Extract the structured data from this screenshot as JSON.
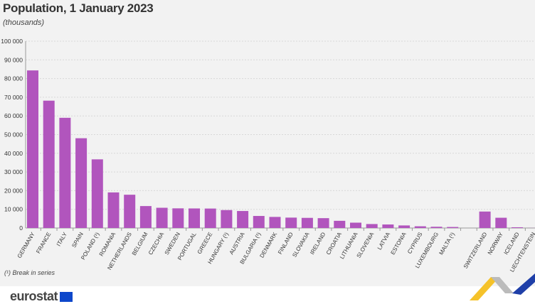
{
  "chart_data": {
    "type": "bar",
    "title": "Population, 1 January 2023",
    "subtitle": "(thousands)",
    "categories": [
      "GERMANY",
      "FRANCE",
      "ITALY",
      "SPAIN",
      "POLAND (¹)",
      "ROMANIA",
      "NETHERLANDS",
      "BELGIUM",
      "CZECHIA",
      "SWEDEN",
      "PORTUGAL",
      "GREECE",
      "HUNGARY (¹)",
      "AUSTRIA",
      "BULGARIA (¹)",
      "DENMARK",
      "FINLAND",
      "SLOVAKIA",
      "IRELAND",
      "CROATIA",
      "LITHUANIA",
      "SLOVENIA",
      "LATVIA",
      "ESTONIA",
      "CYPRUS",
      "LUXEMBOURG",
      "MALTA (¹)",
      "",
      "SWITZERLAND",
      "NORWAY",
      "ICELAND",
      "LIECHTENSTEIN"
    ],
    "values": [
      84359,
      68173,
      58997,
      48059,
      36754,
      19052,
      17811,
      11743,
      10828,
      10522,
      10467,
      10414,
      9600,
      9105,
      6448,
      5933,
      5564,
      5429,
      5271,
      3851,
      2858,
      2117,
      1883,
      1366,
      921,
      661,
      542,
      null,
      8812,
      5489,
      388,
      40
    ],
    "ylim": [
      0,
      100000
    ],
    "yticks": [
      "0",
      "10 000",
      "20 000",
      "30 000",
      "40 000",
      "50 000",
      "60 000",
      "70 000",
      "80 000",
      "90 000",
      "100 000"
    ],
    "grid": true,
    "bar_color": "#b155bd",
    "note": "(¹) Break in series"
  },
  "footer": {
    "logo": "eurostat"
  }
}
